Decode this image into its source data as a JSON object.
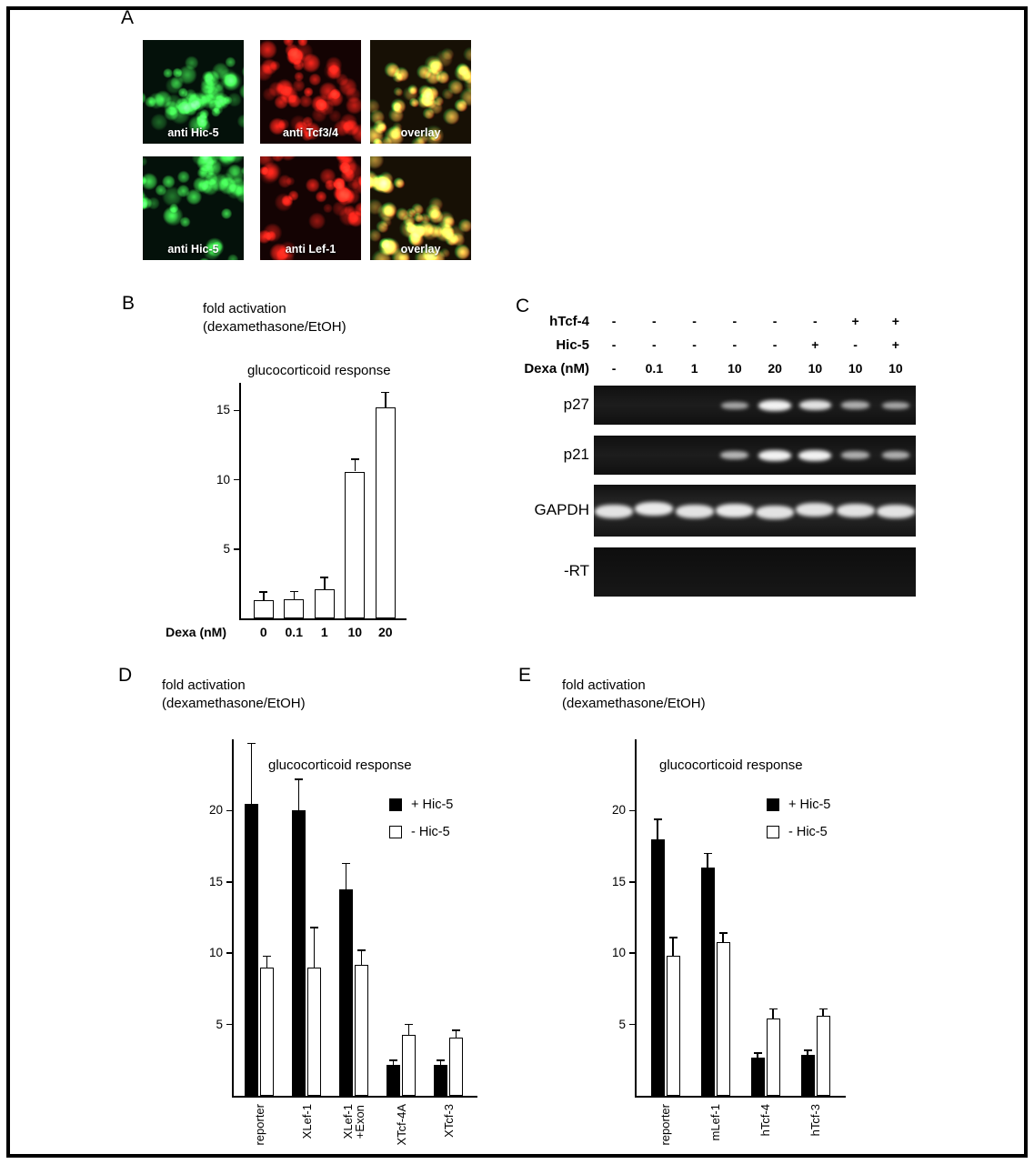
{
  "panel_labels": {
    "a": "A",
    "b": "B",
    "c": "C",
    "d": "D",
    "e": "E"
  },
  "colors": {
    "fluor_green_rgb": "60,210,70",
    "fluor_red_rgb": "230,35,25",
    "gel_band": "#f2f2f2",
    "axis": "#000000"
  },
  "panel_a": {
    "images": [
      {
        "label": "anti Hic-5",
        "mode": "green"
      },
      {
        "label": "anti Tcf3/4",
        "mode": "red"
      },
      {
        "label": "overlay",
        "mode": "overlay"
      },
      {
        "label": "anti Hic-5",
        "mode": "green"
      },
      {
        "label": "anti Lef-1",
        "mode": "red"
      },
      {
        "label": "overlay",
        "mode": "overlay"
      }
    ]
  },
  "panel_c": {
    "header_rows": [
      {
        "label": "hTcf-4",
        "values": [
          "-",
          "-",
          "-",
          "-",
          "-",
          "-",
          "+",
          "+"
        ]
      },
      {
        "label": "Hic-5",
        "values": [
          "-",
          "-",
          "-",
          "-",
          "-",
          "+",
          "-",
          "+"
        ]
      },
      {
        "label": "Dexa (nM)",
        "values": [
          "-",
          "0.1",
          "1",
          "10",
          "20",
          "10",
          "10",
          "10"
        ]
      }
    ],
    "gels": [
      {
        "label": "p27",
        "bands": [
          0,
          0,
          0,
          0.5,
          1,
          0.9,
          0.55,
          0.5
        ]
      },
      {
        "label": "p21",
        "bands": [
          0,
          0,
          0,
          0.6,
          1,
          1,
          0.55,
          0.55
        ]
      },
      {
        "label": "GAPDH",
        "bands": [
          0.9,
          0.95,
          0.9,
          0.95,
          0.9,
          0.9,
          0.9,
          0.9
        ]
      },
      {
        "label": "-RT",
        "bands": [
          0,
          0,
          0,
          0,
          0,
          0,
          0,
          0
        ]
      }
    ]
  },
  "chart_data": [
    {
      "id": "B",
      "type": "bar",
      "title": "glucocorticoid response",
      "ylabel": "fold activation\n(dexamethasone/EtOH)",
      "xlabel": "Dexa (nM)",
      "categories": [
        "0",
        "0.1",
        "1",
        "10",
        "20"
      ],
      "values": [
        1.3,
        1.4,
        2.1,
        10.6,
        15.2
      ],
      "errors": [
        0.6,
        0.55,
        0.85,
        0.9,
        1.1
      ],
      "yticks": [
        5,
        10,
        15
      ],
      "ylim": [
        0,
        17
      ],
      "bar_fill": "white",
      "grid": false,
      "legend_position": "none"
    },
    {
      "id": "D",
      "type": "bar",
      "title": "glucocorticoid response",
      "ylabel": "fold activation\n(dexamethasone/EtOH)",
      "categories": [
        "reporter",
        "XLef-1",
        "XLef-1\n+Exon",
        "XTcf-4A",
        "XTcf-3"
      ],
      "series": [
        {
          "name": "+ Hic-5",
          "fill": "black",
          "values": [
            20.5,
            20,
            14.5,
            2.2,
            2.2
          ],
          "errors": [
            4.2,
            2.2,
            1.8,
            0.3,
            0.3
          ]
        },
        {
          "name": "- Hic-5",
          "fill": "white",
          "values": [
            9,
            9,
            9.2,
            4.3,
            4.1
          ],
          "errors": [
            0.8,
            2.8,
            1,
            0.7,
            0.5
          ]
        }
      ],
      "yticks": [
        5,
        10,
        15,
        20
      ],
      "ylim": [
        0,
        25
      ],
      "legend": [
        {
          "label": "+ Hic-5",
          "fill": "black"
        },
        {
          "label": "- Hic-5",
          "fill": "white"
        }
      ],
      "grid": false,
      "legend_position": "upper-right"
    },
    {
      "id": "E",
      "type": "bar",
      "title": "glucocorticoid response",
      "ylabel": "fold activation\n(dexamethasone/EtOH)",
      "categories": [
        "reporter",
        "mLef-1",
        "hTcf-4",
        "hTcf-3"
      ],
      "series": [
        {
          "name": "+ Hic-5",
          "fill": "black",
          "values": [
            18,
            16,
            2.7,
            2.9
          ],
          "errors": [
            1.4,
            1.0,
            0.3,
            0.3
          ]
        },
        {
          "name": "- Hic-5",
          "fill": "white",
          "values": [
            9.8,
            10.8,
            5.4,
            5.6
          ],
          "errors": [
            1.3,
            0.6,
            0.7,
            0.5
          ]
        }
      ],
      "yticks": [
        5,
        10,
        15,
        20
      ],
      "ylim": [
        0,
        25
      ],
      "legend": [
        {
          "label": "+ Hic-5",
          "fill": "black"
        },
        {
          "label": "- Hic-5",
          "fill": "white"
        }
      ],
      "grid": false,
      "legend_position": "upper-right"
    }
  ]
}
